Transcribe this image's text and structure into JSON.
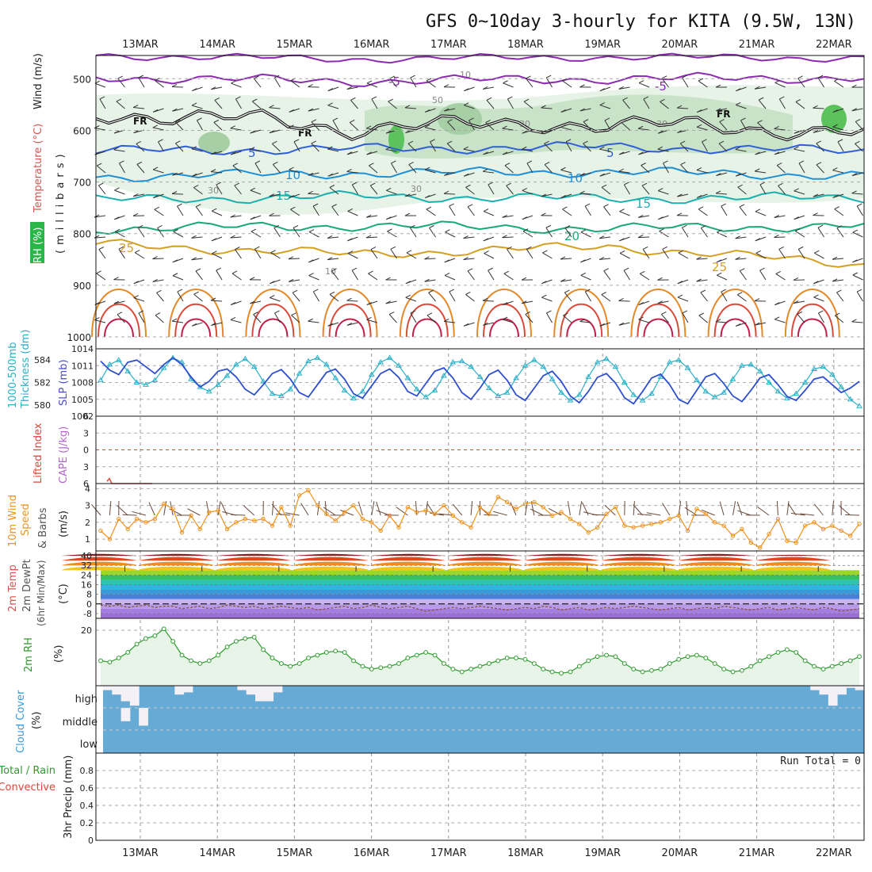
{
  "title": "GFS 0~10day 3-hourly for KITA (9.5W, 13N)",
  "dates": [
    "13MAR",
    "14MAR",
    "15MAR",
    "16MAR",
    "17MAR",
    "18MAR",
    "19MAR",
    "20MAR",
    "21MAR",
    "22MAR"
  ],
  "colors": {
    "rh": "#2bb64a",
    "temp": "#d9534f",
    "wind": "#333333",
    "thickness": "#2ab0c8",
    "slp": "#4b4bd1",
    "cape": "#b266cc",
    "li": "#e0443b",
    "wind10": "#f0921e",
    "t2m_label": "#555555",
    "rh2m": "#2e9b2e",
    "cloud": "#3a9ad8",
    "precip_total": "#2e9b2e",
    "precip_conv": "#e0443b"
  },
  "labels": {
    "p1": {
      "rh": "RH (%)",
      "temp": "Temperature (°C)",
      "wind": "Wind (m/s)",
      "unit": "(millibars)"
    },
    "p2": {
      "a": "1000-500mb",
      "b": "Thickness (dm)",
      "c": "SLP (mb)"
    },
    "p3": {
      "a": "Lifted Index",
      "b": "CAPE (J/kg)"
    },
    "p4": {
      "a": "10m Wind",
      "b": "Speed",
      "c": "& Barbs",
      "d": "(m/s)"
    },
    "p5": {
      "a": "2m Temp",
      "b": "2m DewPt",
      "c": "(6hr Min/Max)",
      "d": "(°C)"
    },
    "p6": {
      "a": "2m RH",
      "b": "(%)"
    },
    "p7": {
      "a": "Cloud Cover",
      "b": "(%)",
      "high": "high",
      "middle": "middle",
      "low": "low"
    },
    "p8": {
      "a": "Total / Rain",
      "b": "Convective",
      "c": "3hr Precip (mm)",
      "run_total": "Run Total = 0"
    }
  },
  "chart_data": [
    {
      "type": "contour",
      "panel": "upper-air cross-section",
      "ylabel": "millibars",
      "y_ticks": [
        500,
        600,
        700,
        800,
        900,
        1000
      ],
      "temperature_contours": [
        {
          "value": -5,
          "label": "-5",
          "color": "#8b2bb0",
          "mb": [
            497,
            505,
            500,
            498
          ]
        },
        {
          "value": 5,
          "label": "5",
          "color": "#2f5ed6",
          "mb": [
            640,
            636,
            632,
            640
          ]
        },
        {
          "value": 10,
          "label": "10",
          "color": "#1f8fd6",
          "mb": [
            690,
            683,
            680,
            688
          ]
        },
        {
          "value": 15,
          "label": "15",
          "color": "#1ab0b0",
          "mb": [
            735,
            728,
            732,
            730
          ]
        },
        {
          "value": 20,
          "label": "20",
          "color": "#1aa87a",
          "mb": [
            790,
            785,
            790,
            785
          ]
        },
        {
          "value": 25,
          "label": "25",
          "color": "#d4a020",
          "mb": [
            820,
            840,
            825,
            860
          ]
        }
      ],
      "freezing_level_label": "FR",
      "freezing_level_mb": [
        565,
        580,
        575,
        600,
        590,
        585,
        592,
        588,
        600,
        605
      ],
      "rh_contour_labels": [
        "10",
        "30",
        "50"
      ]
    },
    {
      "type": "line",
      "panel": "thickness and SLP",
      "thickness_ticks": [
        580,
        582,
        584
      ],
      "slp_ticks": [
        1002,
        1005,
        1008,
        1011,
        1014
      ],
      "series": [
        {
          "name": "1000-500mb Thickness (dm)",
          "color": "#2ab0c8",
          "values": [
            582.2,
            583.6,
            584.0,
            583.0,
            582.0,
            581.8,
            582.2,
            583.3,
            584.2,
            583.8,
            582.3,
            581.6,
            581.2,
            581.8,
            582.6,
            583.6,
            584.1,
            583.4,
            582.1,
            581.0,
            580.8,
            581.4,
            582.8,
            583.9,
            584.2,
            583.6,
            582.4,
            581.3,
            580.6,
            581.2,
            582.7,
            583.8,
            584.2,
            583.5,
            582.4,
            581.4,
            580.7,
            581.3,
            582.6,
            583.8,
            583.9,
            583.4,
            582.5,
            581.5,
            580.8,
            581.1,
            582.4,
            583.5,
            584.0,
            583.4,
            582.3,
            581.1,
            580.4,
            580.9,
            582.5,
            583.8,
            584.1,
            583.4,
            582.0,
            580.9,
            580.4,
            581.0,
            582.5,
            583.8,
            584.0,
            583.3,
            582.2,
            581.2,
            580.7,
            581.1,
            582.3,
            583.5,
            583.6,
            583.0,
            582.0,
            581.2,
            580.6,
            581.0,
            582.0,
            583.2,
            583.4,
            582.7,
            581.6,
            580.5,
            579.9
          ]
        },
        {
          "name": "SLP (mb)",
          "color": "#2f4fcf",
          "values": [
            1011.8,
            1010.2,
            1009.4,
            1011.6,
            1012.0,
            1010.8,
            1009.6,
            1011.2,
            1012.4,
            1011.2,
            1009.0,
            1007.2,
            1008.2,
            1010.0,
            1010.4,
            1009.0,
            1006.8,
            1005.8,
            1007.6,
            1009.6,
            1010.3,
            1008.6,
            1006.2,
            1005.4,
            1007.6,
            1009.8,
            1010.4,
            1008.6,
            1006.0,
            1005.2,
            1007.4,
            1009.6,
            1010.4,
            1008.9,
            1006.4,
            1005.6,
            1007.8,
            1010.0,
            1010.6,
            1008.8,
            1006.2,
            1005.0,
            1007.0,
            1009.4,
            1010.2,
            1008.4,
            1005.8,
            1004.8,
            1007.0,
            1009.2,
            1010.0,
            1008.2,
            1005.6,
            1004.4,
            1006.4,
            1008.9,
            1009.6,
            1007.9,
            1005.3,
            1004.2,
            1006.4,
            1008.8,
            1009.5,
            1007.6,
            1005.0,
            1004.2,
            1006.6,
            1009.0,
            1009.6,
            1007.8,
            1005.6,
            1004.6,
            1006.6,
            1008.8,
            1009.4,
            1007.6,
            1005.5,
            1004.8,
            1006.6,
            1008.6,
            1009.0,
            1007.6,
            1006.2,
            1007.0,
            1008.2
          ]
        }
      ]
    },
    {
      "type": "line",
      "panel": "CAPE and Lifted Index",
      "li_ticks": [
        -6,
        -3,
        0,
        3,
        6
      ],
      "li_range": [
        -6,
        6
      ],
      "reference_line": 0,
      "series": [
        {
          "name": "Lifted Index",
          "values": [
            5.6,
            5.1,
            6.0,
            6.0,
            6.0,
            6.0,
            6.0,
            6.0,
            6.0,
            6.0,
            6.0,
            6.0,
            6.0,
            6.0,
            6.0,
            6.0,
            6.0,
            6.0,
            6.0,
            6.0
          ]
        }
      ]
    },
    {
      "type": "line",
      "panel": "10m wind speed",
      "y_ticks": [
        1,
        2,
        3,
        4
      ],
      "ylim": [
        0.3,
        4.3
      ],
      "series": [
        {
          "name": "10m Wind Speed",
          "color": "#f0921e",
          "values": [
            1.5,
            1.0,
            2.2,
            1.6,
            2.2,
            2.0,
            2.2,
            3.1,
            2.8,
            1.4,
            2.4,
            1.6,
            2.6,
            2.7,
            1.6,
            2.0,
            2.2,
            2.1,
            2.2,
            1.8,
            2.9,
            1.8,
            3.6,
            3.9,
            3.0,
            2.5,
            2.1,
            2.6,
            3.0,
            2.2,
            2.0,
            1.5,
            2.4,
            1.7,
            2.9,
            2.6,
            2.7,
            2.5,
            3.0,
            2.4,
            2.0,
            1.7,
            2.9,
            2.5,
            3.5,
            3.2,
            2.8,
            3.1,
            3.2,
            2.9,
            2.4,
            2.6,
            2.2,
            1.9,
            1.4,
            1.7,
            2.5,
            2.9,
            1.8,
            1.7,
            1.8,
            1.9,
            2.0,
            2.2,
            2.4,
            1.5,
            2.8,
            2.5,
            2.0,
            1.8,
            1.2,
            1.6,
            0.8,
            0.5,
            1.3,
            2.2,
            0.9,
            0.8,
            1.8,
            2.0,
            1.6,
            1.8,
            1.5,
            1.2,
            1.9
          ]
        }
      ]
    },
    {
      "type": "area",
      "panel": "2m temperature and dewpoint",
      "y_ticks": [
        -8,
        0,
        8,
        16,
        24,
        32,
        40
      ],
      "ylim": [
        -12,
        44
      ],
      "series": [
        {
          "name": "2m Temp",
          "daily_max": [
            42,
            42,
            42,
            42,
            42,
            42,
            42,
            42,
            42,
            41
          ],
          "daily_min": [
            26,
            26,
            26,
            26,
            26,
            26,
            26,
            26,
            26,
            26
          ]
        },
        {
          "name": "2m DewPt",
          "values": [
            -1,
            -2,
            -1,
            -3,
            -2,
            -1,
            -3,
            -2,
            -2,
            -4,
            -3,
            -2,
            -4,
            -3,
            -1,
            -2,
            -3,
            -2,
            -4,
            -3,
            -2,
            -3,
            -4,
            -3,
            -5,
            -4,
            -3,
            -2,
            -4,
            -3,
            -1,
            -3,
            -4,
            -3,
            -2,
            -4,
            -6,
            -5,
            -4,
            -3,
            -4,
            -3,
            -2,
            -3,
            -4,
            -5,
            -4,
            -3,
            -4,
            -2,
            -3,
            -5,
            -4,
            -3,
            -5,
            -4,
            -3,
            -4,
            -3,
            -2,
            -3,
            -4,
            -5,
            -4,
            -3,
            -5,
            -4,
            -3,
            -4,
            -2,
            -3,
            -4,
            -5,
            -4,
            -3,
            -5,
            -4,
            -3,
            -4,
            -5,
            -3,
            -4,
            -6,
            -5,
            -4
          ]
        }
      ]
    },
    {
      "type": "line",
      "panel": "2m relative humidity",
      "y_ticks": [
        20
      ],
      "ylim": [
        0,
        22
      ],
      "series": [
        {
          "name": "2m RH",
          "color": "#2e9b2e",
          "values": [
            9,
            8.5,
            10,
            12,
            15,
            17,
            18,
            20.5,
            16,
            11,
            9,
            8,
            9,
            11,
            14,
            16,
            17,
            17.5,
            13,
            10,
            8,
            7,
            8,
            10,
            11,
            12,
            12.5,
            12,
            9,
            7,
            6,
            6.5,
            7,
            8,
            10,
            11,
            12,
            11,
            8,
            6,
            5,
            6,
            7,
            8,
            9,
            10,
            10,
            9.5,
            8,
            6,
            5,
            4.5,
            5,
            7,
            9,
            10.5,
            11,
            10.5,
            8,
            6,
            5,
            5.5,
            6,
            8,
            9.5,
            10.5,
            11,
            10,
            8,
            6,
            5,
            5.5,
            7,
            9,
            10.5,
            12,
            13,
            12,
            9,
            7,
            6,
            7,
            8,
            9,
            10.5
          ]
        }
      ]
    },
    {
      "type": "bar",
      "panel": "cloud cover",
      "categories": [
        "high",
        "middle",
        "low"
      ],
      "high_percent": [
        20,
        40,
        70,
        90,
        0,
        0,
        0,
        0,
        40,
        30,
        0,
        0,
        0,
        0,
        0,
        20,
        40,
        70,
        70,
        30,
        0,
        0,
        0,
        0,
        0,
        0,
        0,
        0,
        0,
        0,
        0,
        0,
        0,
        0,
        0,
        0,
        0,
        0,
        0,
        0,
        0,
        0,
        0,
        0,
        0,
        0,
        0,
        0,
        0,
        0,
        0,
        0,
        0,
        0,
        0,
        0,
        0,
        0,
        0,
        0,
        0,
        0,
        0,
        0,
        0,
        0,
        0,
        0,
        0,
        0,
        0,
        0,
        0,
        0,
        0,
        0,
        0,
        0,
        0,
        20,
        40,
        90,
        40,
        10,
        20
      ],
      "middle_percent": [
        0,
        0,
        60,
        0,
        80,
        0,
        0,
        0,
        0,
        0,
        0,
        0,
        0,
        0,
        0,
        0,
        0,
        0,
        0,
        0,
        0,
        0,
        0,
        0,
        0,
        0,
        0,
        0,
        0,
        0,
        0,
        0,
        0,
        0,
        0,
        0,
        0,
        0,
        0,
        0,
        0,
        0,
        0,
        0,
        0,
        0,
        0,
        0,
        0,
        0,
        0,
        0,
        0,
        0,
        0,
        0,
        0,
        0,
        0,
        0,
        0,
        0,
        0,
        0,
        0,
        0,
        0,
        0,
        0,
        0,
        0,
        0,
        0,
        0,
        0,
        0,
        0,
        0,
        0,
        0,
        0,
        0,
        0,
        0,
        0
      ],
      "low_percent": [
        0,
        0,
        0,
        0,
        0,
        0,
        0,
        0,
        0,
        0,
        0,
        0,
        0,
        0,
        0,
        0,
        0,
        0,
        0,
        0,
        0,
        0,
        0,
        0,
        0,
        0,
        0,
        0,
        0,
        0,
        0,
        0,
        0,
        0,
        0,
        0,
        0,
        0,
        0,
        0,
        0,
        0,
        0,
        0,
        0,
        0,
        0,
        0,
        0,
        0,
        0,
        0,
        0,
        0,
        0,
        0,
        0,
        0,
        0,
        0,
        0,
        0,
        0,
        0,
        0,
        0,
        0,
        0,
        0,
        0,
        0,
        0,
        0,
        0,
        0,
        0,
        0,
        0,
        0,
        0,
        0,
        0,
        0,
        0,
        0
      ]
    },
    {
      "type": "bar",
      "panel": "3hr precipitation",
      "y_ticks": [
        0,
        0.2,
        0.4,
        0.6,
        0.8
      ],
      "ylim": [
        0,
        1.0
      ],
      "series": [
        {
          "name": "Total / Rain",
          "values": [
            0
          ]
        },
        {
          "name": "Convective",
          "values": [
            0
          ]
        }
      ]
    }
  ]
}
